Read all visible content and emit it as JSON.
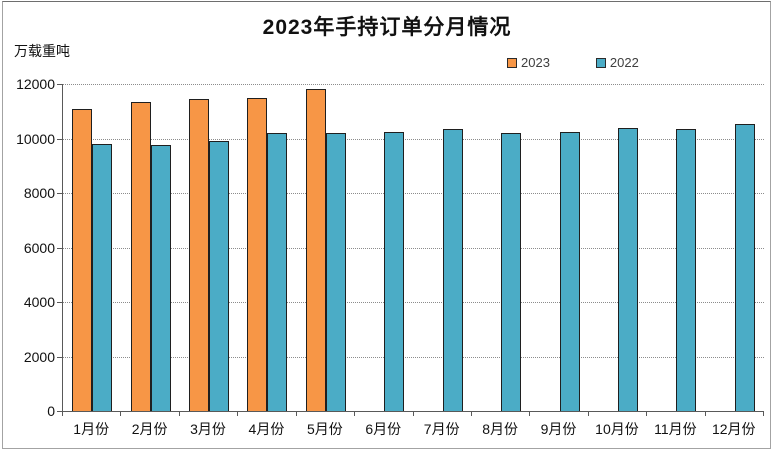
{
  "chart_data": {
    "type": "bar",
    "title": "2023年手持订单分月情况",
    "ylabel": "万载重吨",
    "xlabel": "",
    "categories": [
      "1月份",
      "2月份",
      "3月份",
      "4月份",
      "5月份",
      "6月份",
      "7月份",
      "8月份",
      "9月份",
      "10月份",
      "11月份",
      "12月份"
    ],
    "series": [
      {
        "name": "2023",
        "color": "#F79646",
        "values": [
          11100,
          11350,
          11450,
          11500,
          11800,
          null,
          null,
          null,
          null,
          null,
          null,
          null
        ]
      },
      {
        "name": "2022",
        "color": "#4BACC6",
        "values": [
          9800,
          9750,
          9900,
          10200,
          10200,
          10250,
          10350,
          10200,
          10250,
          10400,
          10350,
          10550
        ]
      }
    ],
    "ylim": [
      0,
      12000
    ],
    "yticks": [
      0,
      2000,
      4000,
      6000,
      8000,
      10000,
      12000
    ],
    "grid": "horizontal-dotted",
    "legend_position": "top-right",
    "bar_border_color": "#1f1f1f",
    "gridline_color": "#8c8c8c",
    "axis_color": "#595959"
  }
}
